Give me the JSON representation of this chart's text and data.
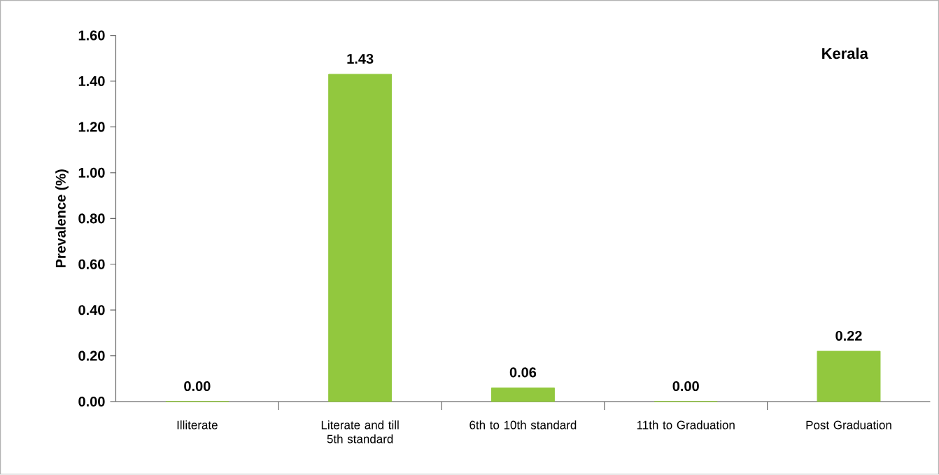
{
  "chart_data": {
    "type": "bar",
    "title": "Kerala",
    "ylabel": "Prevalence (%)",
    "categories": [
      "Illiterate",
      "Literate and till 5th standard",
      "6th to 10th standard",
      "11th to Graduation",
      "Post Graduation"
    ],
    "values": [
      0,
      1.43,
      0.06,
      0,
      0.22
    ],
    "color": "#92c83e",
    "ylim": [
      0,
      1.6
    ],
    "yticks": [
      {
        "value": 0,
        "label": "0.00"
      },
      {
        "value": 0.2,
        "label": "0.20"
      },
      {
        "value": 0.4,
        "label": "0.40"
      },
      {
        "value": 0.6,
        "label": "0.60"
      },
      {
        "value": 0.8,
        "label": "0.80"
      },
      {
        "value": 1.0,
        "label": "1.00"
      },
      {
        "value": 1.2,
        "label": "1.20"
      },
      {
        "value": 1.4,
        "label": "1.40"
      },
      {
        "value": 1.6,
        "label": "1.60"
      }
    ],
    "value_labels": [
      "0.00",
      "1.43",
      "0.06",
      "0.00",
      "0.22"
    ],
    "grid": false
  }
}
